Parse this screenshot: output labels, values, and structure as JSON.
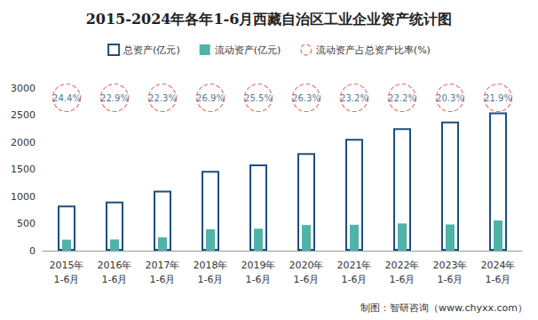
{
  "chart_data": {
    "type": "bar",
    "title": "2015-2024年各年1-6月西藏自治区工业企业资产统计图",
    "source": "制图：智研咨询（www.chyxx.com）",
    "categories": [
      "2015年\n1-6月",
      "2016年\n1-6月",
      "2017年\n1-6月",
      "2018年\n1-6月",
      "2019年\n1-6月",
      "2020年\n1-6月",
      "2021年\n1-6月",
      "2022年\n1-6月",
      "2023年\n1-6月",
      "2024年\n1-6月"
    ],
    "series": [
      {
        "name": "总资产(亿元)",
        "type": "bar",
        "color": "#1f4e79",
        "values": [
          830,
          905,
          1105,
          1470,
          1590,
          1800,
          2060,
          2260,
          2380,
          2550
        ]
      },
      {
        "name": "流动资产(亿元)",
        "type": "bar",
        "color": "#4fb3a9",
        "values": [
          203,
          207,
          246,
          395,
          405,
          473,
          478,
          502,
          483,
          558
        ]
      },
      {
        "name": "流动资产占总资产比率(%)",
        "type": "scatter",
        "color": "#d9534f",
        "marker": "circle",
        "line_style": "dashed",
        "data_labels": true,
        "values": [
          24.4,
          22.9,
          22.3,
          26.9,
          25.5,
          26.3,
          23.2,
          22.2,
          20.3,
          21.9
        ],
        "value_labels": [
          "24.4%",
          "22.9%",
          "22.3%",
          "26.9%",
          "25.5%",
          "26.3%",
          "23.2%",
          "22.2%",
          "20.3%",
          "21.9%"
        ]
      }
    ],
    "ylim": [
      0,
      3000
    ],
    "yticks": [
      0,
      500,
      1000,
      1500,
      2000,
      2500,
      3000
    ],
    "grid": false,
    "legend": "top"
  }
}
